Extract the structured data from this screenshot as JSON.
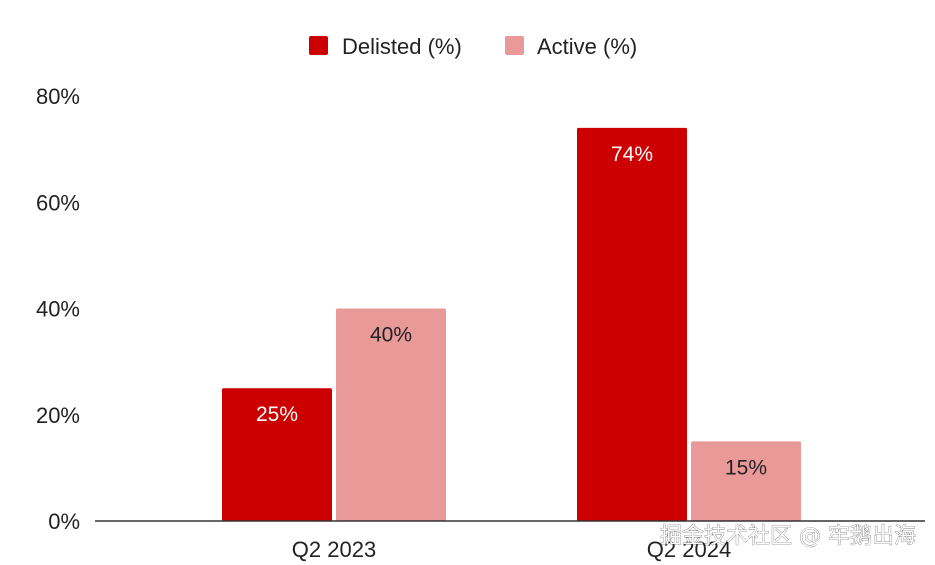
{
  "chart_data": {
    "type": "bar",
    "categories": [
      "Q2 2023",
      "Q2 2024"
    ],
    "series": [
      {
        "name": "Delisted (%)",
        "values": [
          25,
          74
        ],
        "labels": [
          "25%",
          "74%"
        ],
        "color": "#cc0000",
        "label_color": "#ffffff"
      },
      {
        "name": "Active (%)",
        "values": [
          40,
          15
        ],
        "labels": [
          "40%",
          "15%"
        ],
        "color": "#ea9999",
        "label_color": "#222222"
      }
    ],
    "ylim": [
      0,
      80
    ],
    "yticks": [
      0,
      20,
      40,
      60,
      80
    ],
    "ytick_labels": [
      "0%",
      "20%",
      "40%",
      "60%",
      "80%"
    ],
    "legend_position": "top-center",
    "grid": false,
    "title": "",
    "xlabel": "",
    "ylabel": ""
  },
  "watermark": "掘金技术社区 @ 牢鹅出海"
}
